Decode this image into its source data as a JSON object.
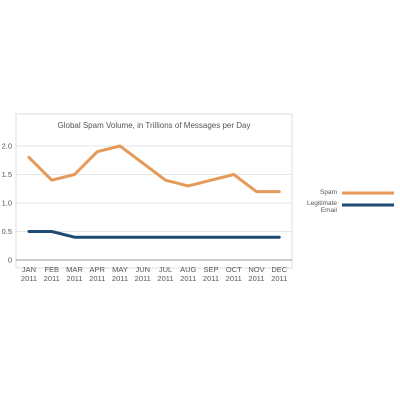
{
  "chart_data": {
    "type": "line",
    "title": "Global Spam Volume, in Trillions of Messages per Day",
    "xlabel": "",
    "ylabel": "",
    "categories": [
      [
        "JAN",
        "2011"
      ],
      [
        "FEB",
        "2011"
      ],
      [
        "MAR",
        "2011"
      ],
      [
        "APR",
        "2011"
      ],
      [
        "MAY",
        "2011"
      ],
      [
        "JUN",
        "2011"
      ],
      [
        "JUL",
        "2011"
      ],
      [
        "AUG",
        "2011"
      ],
      [
        "SEP",
        "2011"
      ],
      [
        "OCT",
        "2011"
      ],
      [
        "NOV",
        "2011"
      ],
      [
        "DEC",
        "2011"
      ]
    ],
    "ylim": [
      0,
      2.0
    ],
    "yticks": [
      "0",
      "0.5",
      "1.0",
      "1.5",
      "2.0"
    ],
    "ytick_values": [
      0,
      0.5,
      1.0,
      1.5,
      2.0
    ],
    "grid": "horizontal",
    "legend_position": "right",
    "series": [
      {
        "name": "Spam",
        "color": "#e59a5a",
        "values": [
          1.8,
          1.4,
          1.5,
          1.9,
          2.0,
          1.7,
          1.4,
          1.3,
          1.4,
          1.5,
          1.2,
          1.2
        ]
      },
      {
        "name": "Legitimate Email",
        "legend_lines": [
          "Legitimate",
          "Email"
        ],
        "color": "#1e4a73",
        "values": [
          0.5,
          0.5,
          0.4,
          0.4,
          0.4,
          0.4,
          0.4,
          0.4,
          0.4,
          0.4,
          0.4,
          0.4
        ]
      }
    ]
  }
}
